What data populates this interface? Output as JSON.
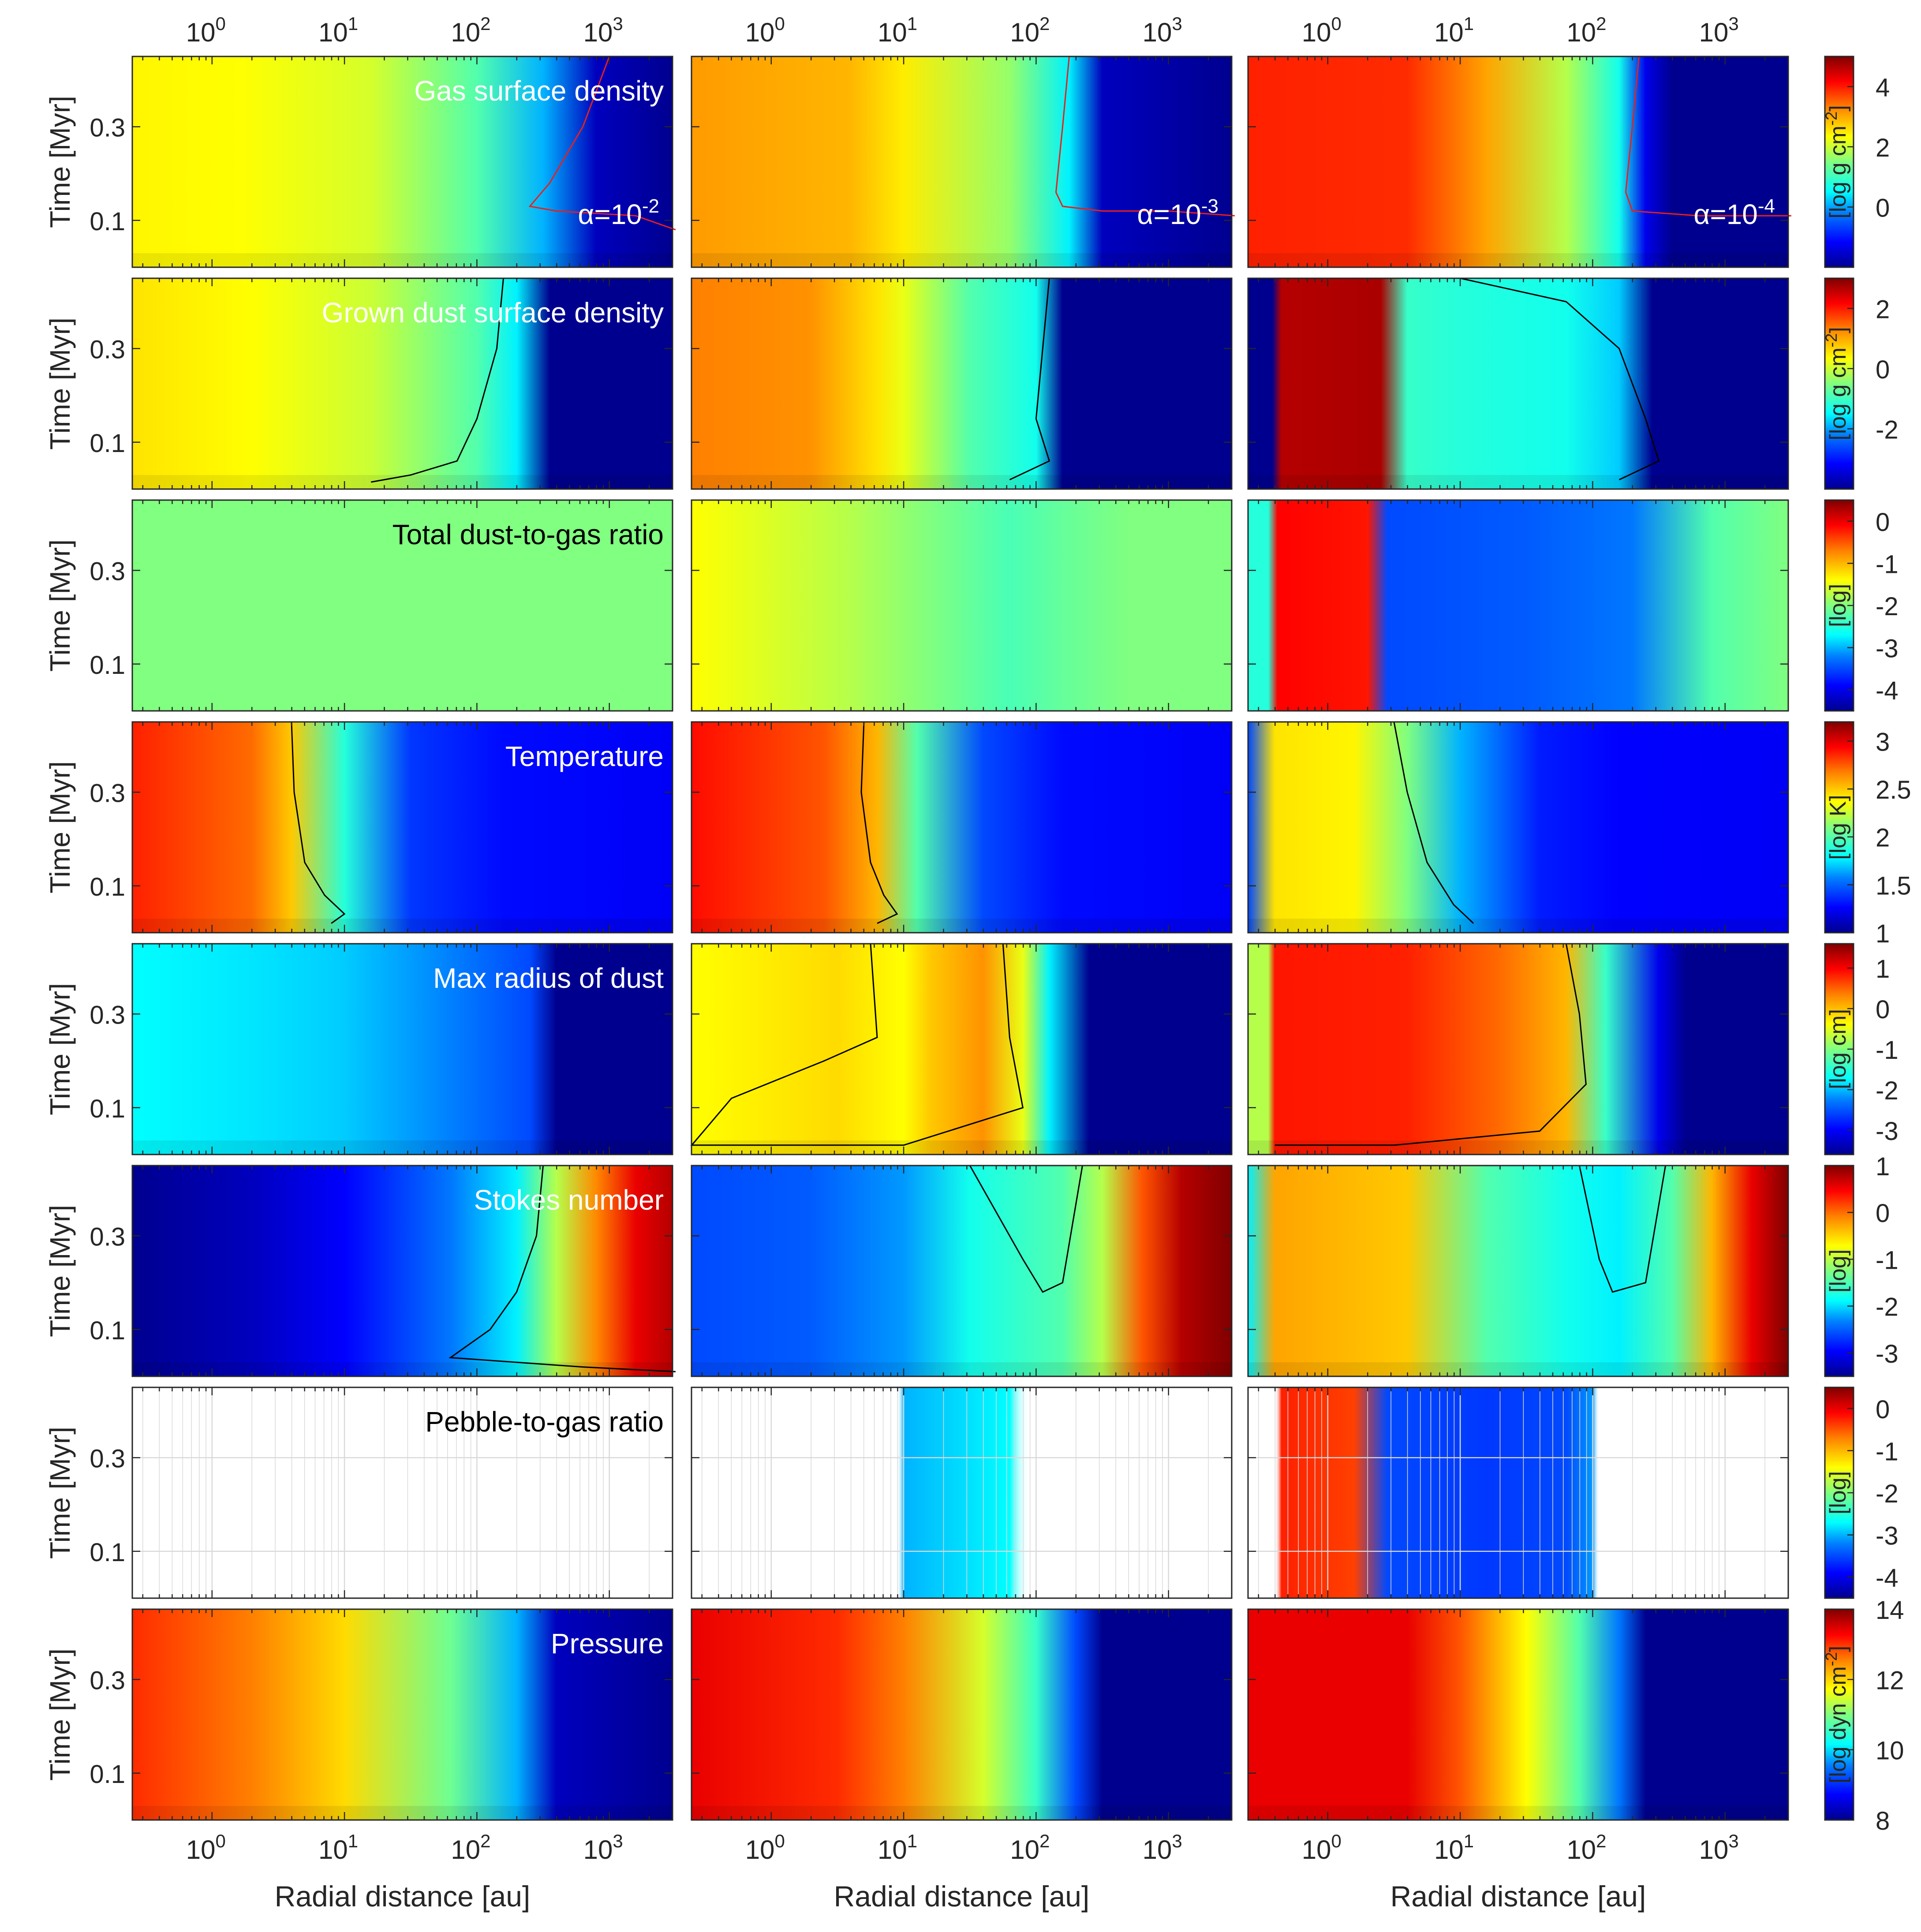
{
  "chart_data": {
    "type": "heatmap",
    "layout": {
      "rows": 8,
      "cols": 3
    },
    "x_axis": {
      "label": "Radial distance [au]",
      "scale": "log",
      "range_au": [
        0.25,
        3000
      ],
      "ticks": [
        {
          "value": 1,
          "base": "10",
          "exp": "0"
        },
        {
          "value": 10,
          "base": "10",
          "exp": "1"
        },
        {
          "value": 100,
          "base": "10",
          "exp": "2"
        },
        {
          "value": 1000,
          "base": "10",
          "exp": "3"
        }
      ]
    },
    "y_axis": {
      "label": "Time [Myr]",
      "range_myr": [
        0,
        0.45
      ],
      "ticks": [
        {
          "value": 0.1,
          "label": "0.1"
        },
        {
          "value": 0.3,
          "label": "0.3"
        }
      ]
    },
    "columns": [
      {
        "alpha_base": "α=10",
        "alpha_exp": "-2"
      },
      {
        "alpha_base": "α=10",
        "alpha_exp": "-3"
      },
      {
        "alpha_base": "α=10",
        "alpha_exp": "-4"
      }
    ],
    "rows": [
      {
        "key": "gas",
        "title": "Gas surface density",
        "title_color": "#ffffff",
        "colorbar": {
          "label_base": "[log g cm",
          "label_sup": "-2",
          "label_end": "]",
          "range": [
            -2,
            5
          ],
          "ticks": [
            {
              "value": 0,
              "label": "0"
            },
            {
              "value": 2,
              "label": "2"
            },
            {
              "value": 4,
              "label": "4"
            }
          ]
        }
      },
      {
        "key": "dust",
        "title": "Grown dust surface density",
        "title_color": "#ffffff",
        "colorbar": {
          "label_base": "[log g cm",
          "label_sup": "-2",
          "label_end": "]",
          "range": [
            -4,
            3
          ],
          "ticks": [
            {
              "value": -2,
              "label": "-2"
            },
            {
              "value": 0,
              "label": "0"
            },
            {
              "value": 2,
              "label": "2"
            }
          ]
        }
      },
      {
        "key": "d2g",
        "title": "Total dust-to-gas ratio",
        "title_color": "#000000",
        "colorbar": {
          "label_base": "[log]",
          "label_sup": "",
          "label_end": "",
          "range": [
            -4.5,
            0.5
          ],
          "ticks": [
            {
              "value": -4,
              "label": "-4"
            },
            {
              "value": -3,
              "label": "-3"
            },
            {
              "value": -2,
              "label": "-2"
            },
            {
              "value": -1,
              "label": "-1"
            },
            {
              "value": 0,
              "label": "0"
            }
          ]
        }
      },
      {
        "key": "temp",
        "title": "Temperature",
        "title_color": "#ffffff",
        "colorbar": {
          "label_base": "[log K]",
          "label_sup": "",
          "label_end": "",
          "range": [
            1,
            3.2
          ],
          "ticks": [
            {
              "value": 1,
              "label": "1"
            },
            {
              "value": 1.5,
              "label": "1.5"
            },
            {
              "value": 2,
              "label": "2"
            },
            {
              "value": 2.5,
              "label": "2.5"
            },
            {
              "value": 3,
              "label": "3"
            }
          ]
        }
      },
      {
        "key": "amax",
        "title": "Max radius of dust",
        "title_color": "#ffffff",
        "colorbar": {
          "label_base": "[log cm]",
          "label_sup": "",
          "label_end": "",
          "range": [
            -3.6,
            1.6
          ],
          "ticks": [
            {
              "value": -3,
              "label": "-3"
            },
            {
              "value": -2,
              "label": "-2"
            },
            {
              "value": -1,
              "label": "-1"
            },
            {
              "value": 0,
              "label": "0"
            },
            {
              "value": 1,
              "label": "1"
            }
          ]
        }
      },
      {
        "key": "stokes",
        "title": "Stokes number",
        "title_color": "#ffffff",
        "colorbar": {
          "label_base": "[log]",
          "label_sup": "",
          "label_end": "",
          "range": [
            -3.5,
            1
          ],
          "ticks": [
            {
              "value": -3,
              "label": "-3"
            },
            {
              "value": -2,
              "label": "-2"
            },
            {
              "value": -1,
              "label": "-1"
            },
            {
              "value": 0,
              "label": "0"
            },
            {
              "value": 1,
              "label": "1"
            }
          ]
        }
      },
      {
        "key": "pebble",
        "title": "Pebble-to-gas ratio",
        "title_color": "#000000",
        "colorbar": {
          "label_base": "[log]",
          "label_sup": "",
          "label_end": "",
          "range": [
            -4.5,
            0.5
          ],
          "ticks": [
            {
              "value": -4,
              "label": "-4"
            },
            {
              "value": -3,
              "label": "-3"
            },
            {
              "value": -2,
              "label": "-2"
            },
            {
              "value": -1,
              "label": "-1"
            },
            {
              "value": 0,
              "label": "0"
            }
          ]
        }
      },
      {
        "key": "pressure",
        "title": "Pressure",
        "title_color": "#ffffff",
        "colorbar": {
          "label_base": "[log dyn cm",
          "label_sup": "-2",
          "label_end": "]",
          "range": [
            8,
            14
          ],
          "ticks": [
            {
              "value": 8,
              "label": "8"
            },
            {
              "value": 10,
              "label": "10"
            },
            {
              "value": 12,
              "label": "12"
            },
            {
              "value": 14,
              "label": "14"
            }
          ]
        }
      }
    ]
  }
}
